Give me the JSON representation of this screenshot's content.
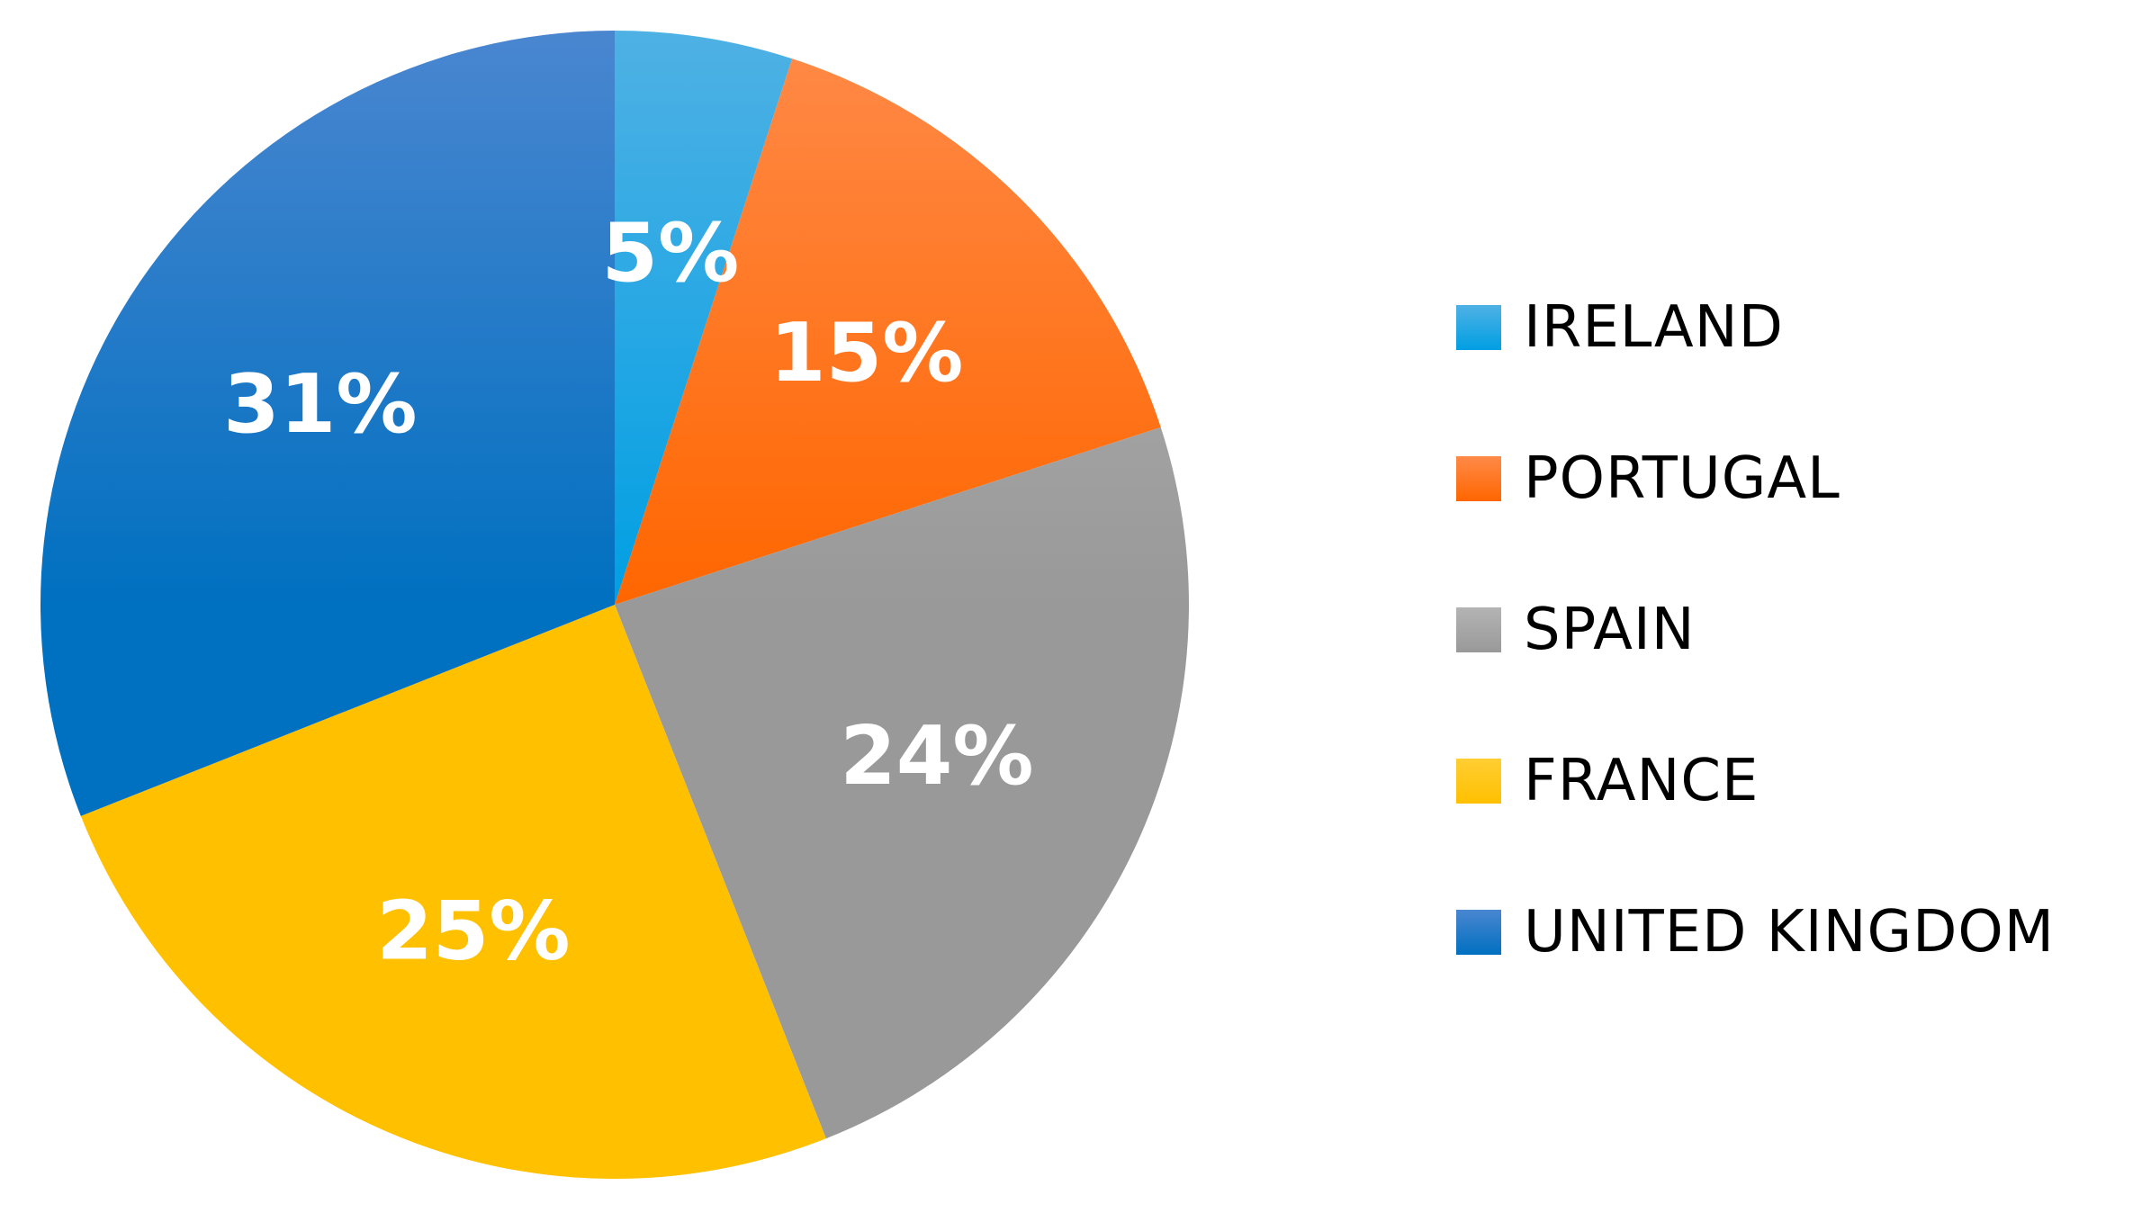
{
  "chart_data": {
    "type": "pie",
    "start_angle_deg": 0,
    "direction": "clockwise",
    "legend_position": "right",
    "slices": [
      {
        "name": "IRELAND",
        "value": 5,
        "label": "5%",
        "color": "#009fe3",
        "color_light": "#4fb1e4"
      },
      {
        "name": "PORTUGAL",
        "value": 15,
        "label": "15%",
        "color": "#ff6600",
        "color_light": "#ff8a48"
      },
      {
        "name": "SPAIN",
        "value": 24,
        "label": "24%",
        "color": "#999999",
        "color_light": "#b4b4b4"
      },
      {
        "name": "FRANCE",
        "value": 25,
        "label": "25%",
        "color": "#ffc000",
        "color_light": "#ffce33"
      },
      {
        "name": "UNITED KINGDOM",
        "value": 31,
        "label": "31%",
        "color": "#0070c0",
        "color_light": "#4a86d0"
      }
    ]
  }
}
